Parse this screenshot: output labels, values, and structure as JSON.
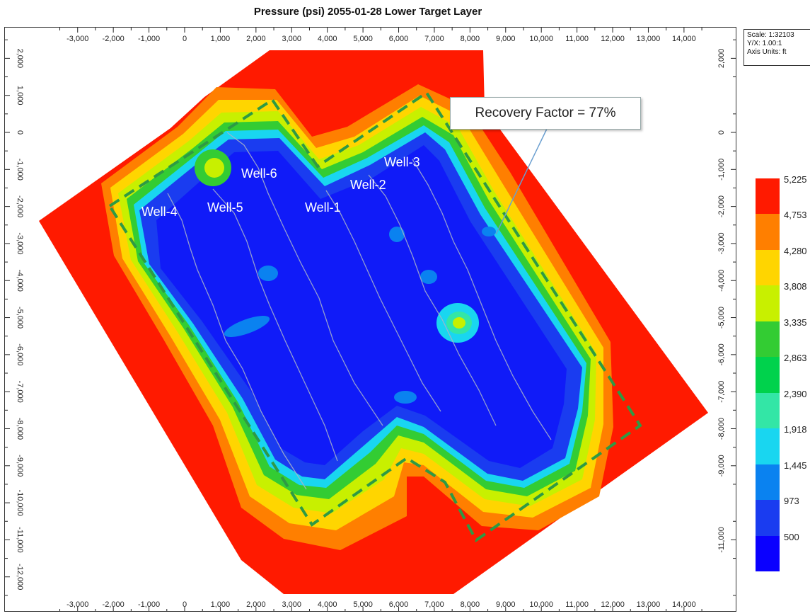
{
  "title": "Pressure (psi) 2055-01-28 Lower Target Layer",
  "scale_box": {
    "scale": "Scale: 1:32103",
    "yx": "Y/X: 1.00:1",
    "axis_units": "Axis Units: ft"
  },
  "callout": "Recovery Factor = 77%",
  "chart_data": {
    "type": "heatmap",
    "title": "Pressure (psi) 2055-01-28 Lower Target Layer",
    "x_ticks": [
      "-3,000",
      "-2,000",
      "-1,000",
      "0",
      "1,000",
      "2,000",
      "3,000",
      "4,000",
      "5,000",
      "6,000",
      "7,000",
      "8,000",
      "9,000",
      "10,000",
      "11,000",
      "12,000",
      "13,000",
      "14,000"
    ],
    "x_tick_values": [
      -3000,
      -2000,
      -1000,
      0,
      1000,
      2000,
      3000,
      4000,
      5000,
      6000,
      7000,
      8000,
      9000,
      10000,
      11000,
      12000,
      13000,
      14000
    ],
    "y_ticks": [
      "2,000",
      "1,000",
      "0",
      "-1,000",
      "-2,000",
      "-3,000",
      "-4,000",
      "-5,000",
      "-6,000",
      "-7,000",
      "-8,000",
      "-9,000",
      "-10,000",
      "-11,000",
      "-12,000"
    ],
    "y_tick_values": [
      2000,
      1000,
      0,
      -1000,
      -2000,
      -3000,
      -4000,
      -5000,
      -6000,
      -7000,
      -8000,
      -9000,
      -10000,
      -11000,
      -12000
    ],
    "right_y_ticks": [
      "2,000",
      "0",
      "-1,000",
      "-2,000",
      "-3,000",
      "-4,000",
      "-5,000",
      "-6,000",
      "-7,000",
      "-8,000",
      "-9,000",
      "-11,000"
    ],
    "right_y_tick_values": [
      2000,
      0,
      -1000,
      -2000,
      -3000,
      -4000,
      -5000,
      -6000,
      -7000,
      -8000,
      -9000,
      -11000
    ],
    "xlim": [
      -4000,
      15000
    ],
    "ylim": [
      -12900,
      2900
    ],
    "units": "ft",
    "legend": {
      "values": [
        "5,225",
        "4,753",
        "4,280",
        "3,808",
        "3,335",
        "2,863",
        "2,390",
        "1,918",
        "1,445",
        "973",
        "500"
      ],
      "colors": [
        "#ff1a00",
        "#ff7f00",
        "#ffd500",
        "#c8f000",
        "#33cc33",
        "#00d24c",
        "#33e6a6",
        "#19d6f0",
        "#0a82f0",
        "#1a3cf0",
        "#0a00ff"
      ],
      "placement": "right"
    },
    "wells": [
      "Well-1",
      "Well-2",
      "Well-3",
      "Well-4",
      "Well-5",
      "Well-6"
    ],
    "annotation": "Recovery Factor = 77%"
  }
}
